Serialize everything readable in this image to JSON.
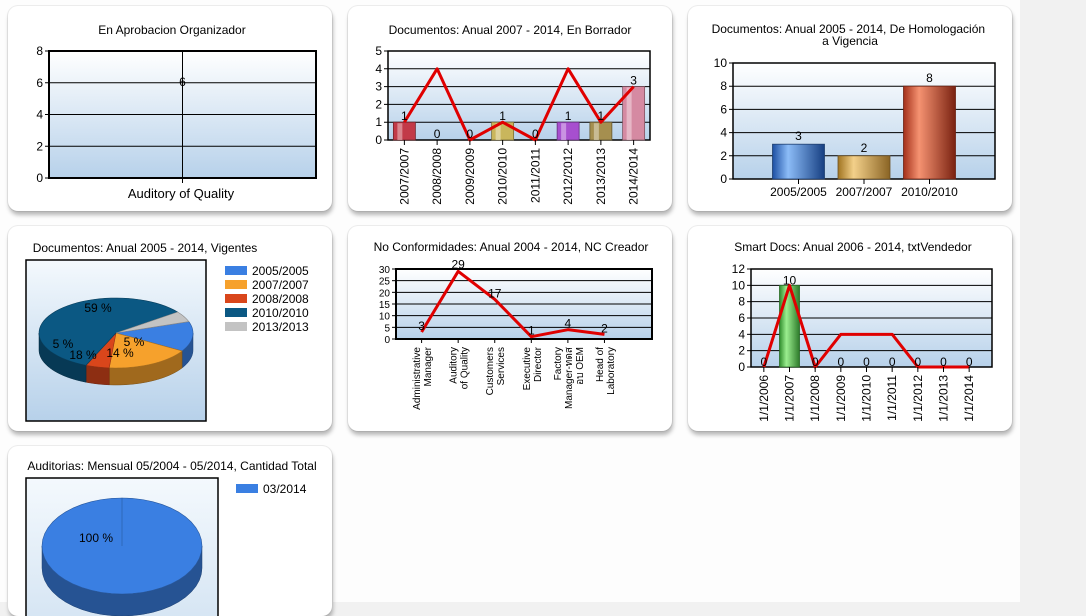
{
  "chart_data": [
    {
      "type": "bar",
      "title": "En Aprobacion Organizador",
      "categories": [
        "Auditory of Quality"
      ],
      "values": [
        6
      ],
      "ylim": [
        0,
        8
      ],
      "yticks": [
        0,
        2,
        4,
        6,
        8
      ],
      "grid": true,
      "colors": {
        "plot_top": "#ffffff",
        "plot_bottom": "#b7d1ea",
        "line": "#e00000"
      }
    },
    {
      "type": "bar",
      "title": "Documentos: Anual 2007 - 2014, En Borrador",
      "categories": [
        "2007/2007",
        "2008/2008",
        "2009/2009",
        "2010/2010",
        "2011/2011",
        "2012/2012",
        "2013/2013",
        "2014/2014"
      ],
      "values": [
        1,
        0,
        0,
        1,
        0,
        1,
        1,
        3
      ],
      "line_values": [
        1,
        4,
        0,
        1,
        0,
        4,
        1,
        3
      ],
      "ylim": [
        0,
        5
      ],
      "yticks": [
        0,
        1,
        2,
        3,
        4,
        5
      ],
      "grid": true,
      "colors": {
        "bars": [
          "#c23a48",
          "#c23a48",
          "#c23a48",
          "#c9b65c",
          "#c9b65c",
          "#a74fcf",
          "#a58f4f",
          "#d58aa2"
        ],
        "line": "#e00000"
      }
    },
    {
      "type": "bar",
      "title": "Documentos: Anual 2005 - 2014, De Homologación a Vigencia",
      "categories": [
        "2005/2005",
        "2007/2007",
        "2010/2010"
      ],
      "values": [
        3,
        2,
        8
      ],
      "ylim": [
        0,
        10
      ],
      "yticks": [
        0,
        2,
        4,
        6,
        8,
        10
      ],
      "grid": true,
      "colors": {
        "bars": [
          "#3b7ddb",
          "#d8a24a",
          "#d9472a"
        ]
      }
    },
    {
      "type": "pie",
      "title": "Documentos: Anual 2005 - 2014, Vigentes",
      "labels": [
        "2005/2005",
        "2007/2007",
        "2008/2008",
        "2010/2010",
        "2013/2013"
      ],
      "values": [
        14,
        18,
        5,
        59,
        5
      ],
      "slice_labels": [
        "14 %",
        "18 %",
        "5 %",
        "59 %",
        "5 %"
      ],
      "legend": "right",
      "colors": [
        "#3a7fe2",
        "#f6a12c",
        "#d9461b",
        "#0b5883",
        "#c3c3c3"
      ]
    },
    {
      "type": "line",
      "title": "No Conformidades: Anual 2004 - 2014, NC Creador",
      "categories": [
        "Administrative Manager",
        "Auditory of Quality",
        "Customers Services",
        "Executive Director",
        "Factory Manager-ทดสอบ OEM",
        "Head of Laboratory"
      ],
      "category_lines": [
        [
          "Administrative",
          "Manager"
        ],
        [
          "Auditory",
          "of Quality"
        ],
        [
          "Customers",
          "Services"
        ],
        [
          "Executive",
          "Director"
        ],
        [
          "Factory",
          "Manager-ทดส",
          "อบ OEM"
        ],
        [
          "Head of",
          "Laboratory"
        ]
      ],
      "values": [
        3,
        29,
        17,
        1,
        4,
        2
      ],
      "data_labels": [
        "3",
        "29",
        "17",
        "1",
        "4",
        "2"
      ],
      "ylim": [
        0,
        30
      ],
      "yticks": [
        0,
        5,
        10,
        15,
        20,
        25,
        30
      ],
      "grid": true,
      "colors": {
        "line": "#e00000"
      }
    },
    {
      "type": "bar",
      "title": "Smart Docs: Anual 2006 - 2014, txtVendedor",
      "categories": [
        "1/1/2006",
        "1/1/2007",
        "1/1/2008",
        "1/1/2009",
        "1/1/2010",
        "1/1/2011",
        "1/1/2012",
        "1/1/2013",
        "1/1/2014"
      ],
      "values": [
        0,
        10,
        0,
        0,
        0,
        0,
        0,
        0,
        0
      ],
      "line_values": [
        0,
        10,
        0,
        4,
        4,
        4,
        0,
        0,
        0
      ],
      "ylim": [
        0,
        12
      ],
      "yticks": [
        0,
        2,
        4,
        6,
        8,
        10,
        12
      ],
      "grid": true,
      "colors": {
        "bars": [
          "#55c24e"
        ],
        "line": "#e00000"
      }
    },
    {
      "type": "pie",
      "title": "Auditorias: Mensual 05/2004 - 05/2014, Cantidad Total",
      "labels": [
        "03/2014"
      ],
      "values": [
        100
      ],
      "slice_labels": [
        "100 %"
      ],
      "legend": "right",
      "colors": [
        "#3a7fe2"
      ]
    }
  ]
}
